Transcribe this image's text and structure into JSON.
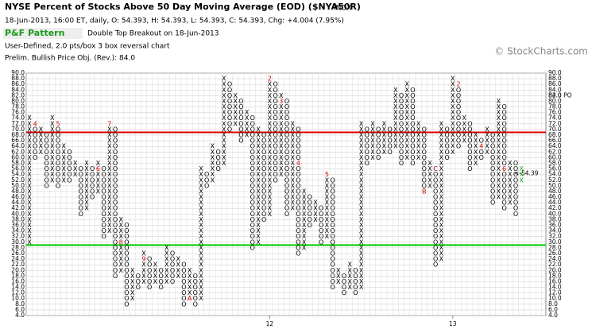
{
  "header": {
    "title": "NYSE Percent of Stocks Above 50 Day Moving Average (EOD) ($NYA50R)",
    "exchange": "INDX",
    "quote": "18-Jun-2013, 16:00 ET, daily, O: 54.393, H: 54.393, L: 54.393, C: 54.393, Chg: +4.004 (7.95%)",
    "pattern_label": "P&F Pattern",
    "pattern": "Double Top Breakout on 18-Jun-2013",
    "settings": "User-Defined, 2.0 pts/box 3 box reversal chart",
    "objective": "Prelim. Bullish Price Obj. (Rev.): 84.0",
    "copyright": "© StockCharts.com"
  },
  "chart_data": {
    "type": "point-and-figure",
    "box_size": 2,
    "ylim": [
      4,
      90
    ],
    "yticks": [
      {
        "value": 90,
        "label": "90.0"
      },
      {
        "value": 88,
        "label": "88.0"
      },
      {
        "value": 86,
        "label": "86.0"
      },
      {
        "value": 84,
        "label": "84.0"
      },
      {
        "value": 82,
        "label": "82.0"
      },
      {
        "value": 80,
        "label": "80.0"
      },
      {
        "value": 78,
        "label": "78.0"
      },
      {
        "value": 76,
        "label": "76.0"
      },
      {
        "value": 74,
        "label": "74.0"
      },
      {
        "value": 72,
        "label": "72.0"
      },
      {
        "value": 70,
        "label": "70.0"
      },
      {
        "value": 68,
        "label": "68.0"
      },
      {
        "value": 66,
        "label": "66.0"
      },
      {
        "value": 64,
        "label": "64.0"
      },
      {
        "value": 62,
        "label": "62.0"
      },
      {
        "value": 60,
        "label": "60.0"
      },
      {
        "value": 58,
        "label": "58.0"
      },
      {
        "value": 56,
        "label": "56.0"
      },
      {
        "value": 54,
        "label": "54.0"
      },
      {
        "value": 52,
        "label": "52.0"
      },
      {
        "value": 50,
        "label": "50.0"
      },
      {
        "value": 48,
        "label": "48.0"
      },
      {
        "value": 46,
        "label": "46.0"
      },
      {
        "value": 44,
        "label": "44.0"
      },
      {
        "value": 42,
        "label": "42.0"
      },
      {
        "value": 40,
        "label": "40.0"
      },
      {
        "value": 38,
        "label": "38.0"
      },
      {
        "value": 36,
        "label": "36.0"
      },
      {
        "value": 34,
        "label": "34.0"
      },
      {
        "value": 32,
        "label": "32.0"
      },
      {
        "value": 30,
        "label": "30.0"
      },
      {
        "value": 28,
        "label": "28.0"
      },
      {
        "value": 26,
        "label": "26.0"
      },
      {
        "value": 24,
        "label": "24.0"
      },
      {
        "value": 22,
        "label": "22.0"
      },
      {
        "value": 20,
        "label": "20.0"
      },
      {
        "value": 18,
        "label": "18.0"
      },
      {
        "value": 16,
        "label": "16.0"
      },
      {
        "value": 14,
        "label": "14.0"
      },
      {
        "value": 12,
        "label": "12.0"
      },
      {
        "value": 10,
        "label": "10.0"
      },
      {
        "value": 8,
        "label": "8.0"
      },
      {
        "value": 6,
        "label": "6.0"
      },
      {
        "value": 4,
        "label": "4.0"
      }
    ],
    "xticks": [
      {
        "value": 42,
        "label": "12"
      },
      {
        "value": 74,
        "label": "13"
      }
    ],
    "columns": [
      {
        "type": "X",
        "low": 30,
        "high": 74
      },
      {
        "type": "O",
        "low": 60,
        "high": 72
      },
      {
        "type": "X",
        "low": 62,
        "high": 70
      },
      {
        "type": "O",
        "low": 50,
        "high": 68
      },
      {
        "type": "X",
        "low": 52,
        "high": 74
      },
      {
        "type": "O",
        "low": 50,
        "high": 72
      },
      {
        "type": "X",
        "low": 52,
        "high": 64
      },
      {
        "type": "O",
        "low": 52,
        "high": 62
      },
      {
        "type": "X",
        "low": 54,
        "high": 58
      },
      {
        "type": "O",
        "low": 40,
        "high": 56
      },
      {
        "type": "X",
        "low": 42,
        "high": 58
      },
      {
        "type": "O",
        "low": 46,
        "high": 56
      },
      {
        "type": "X",
        "low": 48,
        "high": 58
      },
      {
        "type": "O",
        "low": 32,
        "high": 56
      },
      {
        "type": "X",
        "low": 34,
        "high": 72
      },
      {
        "type": "O",
        "low": 18,
        "high": 70
      },
      {
        "type": "X",
        "low": 20,
        "high": 38
      },
      {
        "type": "O",
        "low": 8,
        "high": 36
      },
      {
        "type": "X",
        "low": 10,
        "high": 20
      },
      {
        "type": "O",
        "low": 14,
        "high": 18
      },
      {
        "type": "X",
        "low": 16,
        "high": 26
      },
      {
        "type": "O",
        "low": 14,
        "high": 24
      },
      {
        "type": "X",
        "low": 16,
        "high": 22
      },
      {
        "type": "O",
        "low": 14,
        "high": 20
      },
      {
        "type": "X",
        "low": 16,
        "high": 28
      },
      {
        "type": "O",
        "low": 16,
        "high": 26
      },
      {
        "type": "X",
        "low": 18,
        "high": 24
      },
      {
        "type": "O",
        "low": 8,
        "high": 22
      },
      {
        "type": "X",
        "low": 10,
        "high": 20
      },
      {
        "type": "O",
        "low": 8,
        "high": 18
      },
      {
        "type": "X",
        "low": 10,
        "high": 56
      },
      {
        "type": "O",
        "low": 50,
        "high": 54
      },
      {
        "type": "X",
        "low": 52,
        "high": 64
      },
      {
        "type": "O",
        "low": 56,
        "high": 62
      },
      {
        "type": "X",
        "low": 58,
        "high": 88
      },
      {
        "type": "O",
        "low": 70,
        "high": 86
      },
      {
        "type": "X",
        "low": 72,
        "high": 82
      },
      {
        "type": "O",
        "low": 66,
        "high": 80
      },
      {
        "type": "X",
        "low": 68,
        "high": 76
      },
      {
        "type": "O",
        "low": 28,
        "high": 74
      },
      {
        "type": "X",
        "low": 30,
        "high": 70
      },
      {
        "type": "O",
        "low": 38,
        "high": 68
      },
      {
        "type": "X",
        "low": 40,
        "high": 88
      },
      {
        "type": "O",
        "low": 52,
        "high": 86
      },
      {
        "type": "X",
        "low": 54,
        "high": 82
      },
      {
        "type": "O",
        "low": 40,
        "high": 80
      },
      {
        "type": "X",
        "low": 42,
        "high": 72
      },
      {
        "type": "O",
        "low": 26,
        "high": 70
      },
      {
        "type": "X",
        "low": 28,
        "high": 48
      },
      {
        "type": "O",
        "low": 36,
        "high": 46
      },
      {
        "type": "X",
        "low": 38,
        "high": 44
      },
      {
        "type": "O",
        "low": 30,
        "high": 42
      },
      {
        "type": "X",
        "low": 32,
        "high": 54
      },
      {
        "type": "O",
        "low": 14,
        "high": 52
      },
      {
        "type": "X",
        "low": 16,
        "high": 20
      },
      {
        "type": "O",
        "low": 12,
        "high": 18
      },
      {
        "type": "X",
        "low": 14,
        "high": 22
      },
      {
        "type": "O",
        "low": 12,
        "high": 20
      },
      {
        "type": "X",
        "low": 14,
        "high": 72
      },
      {
        "type": "O",
        "low": 58,
        "high": 70
      },
      {
        "type": "X",
        "low": 60,
        "high": 72
      },
      {
        "type": "O",
        "low": 60,
        "high": 70
      },
      {
        "type": "X",
        "low": 62,
        "high": 72
      },
      {
        "type": "O",
        "low": 62,
        "high": 70
      },
      {
        "type": "X",
        "low": 64,
        "high": 84
      },
      {
        "type": "O",
        "low": 58,
        "high": 82
      },
      {
        "type": "X",
        "low": 60,
        "high": 86
      },
      {
        "type": "O",
        "low": 58,
        "high": 84
      },
      {
        "type": "X",
        "low": 60,
        "high": 72
      },
      {
        "type": "O",
        "low": 48,
        "high": 70
      },
      {
        "type": "X",
        "low": 50,
        "high": 58
      },
      {
        "type": "O",
        "low": 22,
        "high": 56
      },
      {
        "type": "X",
        "low": 24,
        "high": 72
      },
      {
        "type": "O",
        "low": 60,
        "high": 70
      },
      {
        "type": "X",
        "low": 62,
        "high": 88
      },
      {
        "type": "O",
        "low": 64,
        "high": 86
      },
      {
        "type": "X",
        "low": 66,
        "high": 74
      },
      {
        "type": "O",
        "low": 56,
        "high": 72
      },
      {
        "type": "X",
        "low": 58,
        "high": 68
      },
      {
        "type": "O",
        "low": 60,
        "high": 66
      },
      {
        "type": "X",
        "low": 62,
        "high": 70
      },
      {
        "type": "O",
        "low": 44,
        "high": 68
      },
      {
        "type": "X",
        "low": 46,
        "high": 80
      },
      {
        "type": "O",
        "low": 42,
        "high": 78
      },
      {
        "type": "X",
        "low": 44,
        "high": 58
      },
      {
        "type": "O",
        "low": 40,
        "high": 58
      },
      {
        "type": "X",
        "low": 52,
        "high": 56
      }
    ],
    "markers": [
      {
        "column": 1,
        "value": 72,
        "label": "4"
      },
      {
        "column": 5,
        "value": 72,
        "label": "5"
      },
      {
        "column": 12,
        "value": 56,
        "label": "6"
      },
      {
        "column": 14,
        "value": 72,
        "label": "7"
      },
      {
        "column": 16,
        "value": 30,
        "label": "8"
      },
      {
        "column": 20,
        "value": 24,
        "label": "9"
      },
      {
        "column": 28,
        "value": 10,
        "label": "A"
      },
      {
        "column": 42,
        "value": 88,
        "label": "2"
      },
      {
        "column": 44,
        "value": 80,
        "label": "3"
      },
      {
        "column": 47,
        "value": 58,
        "label": "4"
      },
      {
        "column": 52,
        "value": 54,
        "label": "5"
      },
      {
        "column": 69,
        "value": 48,
        "label": "B"
      },
      {
        "column": 71,
        "value": 56,
        "label": "C"
      },
      {
        "column": 75,
        "value": 86,
        "label": "2"
      },
      {
        "column": 79,
        "value": 64,
        "label": "4"
      },
      {
        "column": 83,
        "value": 56,
        "label": "6"
      }
    ],
    "color_x": "#000000",
    "color_o": "#000000",
    "marker_color": "#cc0000",
    "last_color": "#22aa22",
    "resistance": {
      "value": 69,
      "color": "#dd0000"
    },
    "support": {
      "value": 29,
      "color": "#00cc00"
    },
    "price_objective": {
      "value": 84,
      "label": "84.0 PO",
      "color": "#22aa22"
    },
    "last_price": {
      "value": 54.393,
      "label": "<-54.39",
      "color": "#cc0000"
    }
  }
}
